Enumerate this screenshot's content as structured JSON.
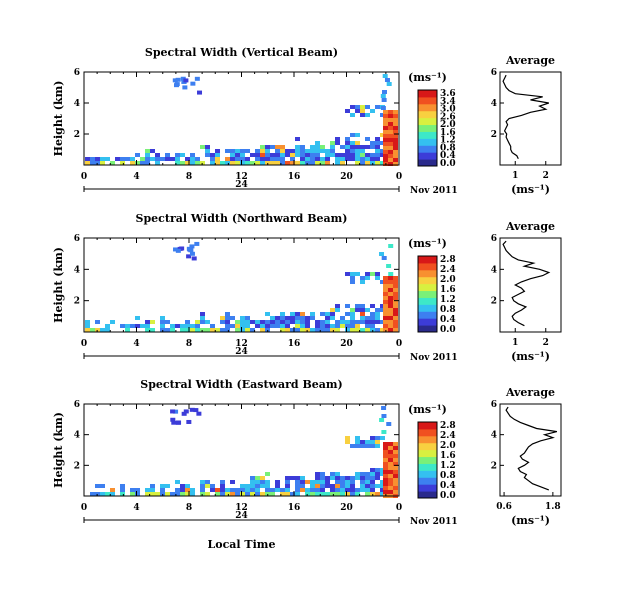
{
  "chart_data": {
    "type": "heatmap",
    "shared": {
      "ylabel": "Height (km)",
      "unit_label": "(ms⁻¹)",
      "x_ticks": [
        "0",
        "4",
        "8",
        "12",
        "16",
        "20",
        "0"
      ],
      "xlim": [
        0,
        24
      ],
      "date_marker": "24",
      "date_label": "Nov 2011",
      "y_ticks": [
        "6",
        "4",
        "2"
      ],
      "ylim": [
        0,
        6
      ],
      "xlabel": "Local Time",
      "colormap": [
        "#2a2a8c",
        "#3c3cd8",
        "#3d7ff0",
        "#34c0f0",
        "#3de8c8",
        "#7af078",
        "#d8f040",
        "#f8d040",
        "#f89030",
        "#f05020",
        "#d81818"
      ]
    },
    "panels": [
      {
        "title": "Spectral Width (Vertical Beam)",
        "colorbar_ticks": [
          "3.6",
          "3.4",
          "3.0",
          "2.6",
          "2.0",
          "1.6",
          "1.2",
          "0.8",
          "0.4",
          "0.0"
        ],
        "average": {
          "title": "Average",
          "xlabel": "(ms⁻¹)",
          "x_ticks": [
            "1",
            "2"
          ],
          "xlim": [
            0.5,
            2.5
          ],
          "y_ticks": [
            "6",
            "4",
            "2"
          ],
          "ylim": [
            0,
            6
          ],
          "height": [
            0.4,
            0.6,
            0.8,
            1.0,
            1.2,
            1.4,
            1.6,
            1.8,
            2.0,
            2.2,
            2.4,
            2.6,
            2.8,
            3.0,
            3.2,
            3.4,
            3.6,
            3.8,
            4.0,
            4.2,
            4.4,
            4.6,
            4.8,
            5.0,
            5.2,
            5.4,
            5.6,
            5.8
          ],
          "value": [
            1.1,
            1.05,
            0.9,
            0.85,
            0.85,
            0.8,
            0.75,
            0.7,
            0.72,
            0.65,
            0.7,
            0.75,
            0.7,
            0.8,
            1.2,
            1.5,
            2.0,
            1.8,
            2.1,
            1.5,
            1.9,
            1.0,
            0.8,
            0.7,
            0.65,
            0.6,
            0.65,
            0.7
          ]
        }
      },
      {
        "title": "Spectral Width (Northward Beam)",
        "colorbar_ticks": [
          "2.8",
          "2.4",
          "2.0",
          "1.6",
          "1.2",
          "0.8",
          "0.4",
          "0.0"
        ],
        "average": {
          "title": "Average",
          "xlabel": "(ms⁻¹)",
          "x_ticks": [
            "1",
            "2"
          ],
          "xlim": [
            0.5,
            2.5
          ],
          "y_ticks": [
            "6",
            "4",
            "2"
          ],
          "ylim": [
            0,
            6
          ],
          "height": [
            0.4,
            0.6,
            0.8,
            1.0,
            1.2,
            1.4,
            1.6,
            1.8,
            2.0,
            2.2,
            2.4,
            2.6,
            2.8,
            3.0,
            3.2,
            3.4,
            3.6,
            3.8,
            4.0,
            4.2,
            4.4,
            4.6,
            4.8,
            5.0,
            5.2,
            5.4,
            5.6,
            5.8
          ],
          "value": [
            1.3,
            1.1,
            0.95,
            0.9,
            1.0,
            1.2,
            1.35,
            1.1,
            0.95,
            0.9,
            1.1,
            1.3,
            1.2,
            1.0,
            1.2,
            1.5,
            1.9,
            2.1,
            1.8,
            1.3,
            1.6,
            1.1,
            0.9,
            0.8,
            0.7,
            0.65,
            0.6,
            0.7
          ]
        }
      },
      {
        "title": "Spectral Width (Eastward Beam)",
        "colorbar_ticks": [
          "2.8",
          "2.4",
          "2.0",
          "1.6",
          "1.2",
          "0.8",
          "0.4",
          "0.0"
        ],
        "average": {
          "title": "Average",
          "xlabel": "(ms⁻¹)",
          "x_ticks": [
            "0.6",
            "1.8"
          ],
          "xlim": [
            0.5,
            2.0
          ],
          "y_ticks": [
            "6",
            "4",
            "2"
          ],
          "ylim": [
            0,
            6
          ],
          "height": [
            0.4,
            0.6,
            0.8,
            1.0,
            1.2,
            1.4,
            1.6,
            1.8,
            2.0,
            2.2,
            2.4,
            2.6,
            2.8,
            3.0,
            3.2,
            3.4,
            3.6,
            3.8,
            4.0,
            4.2,
            4.4,
            4.6,
            4.8,
            5.0,
            5.2,
            5.4,
            5.6,
            5.8
          ],
          "value": [
            1.7,
            1.5,
            1.3,
            1.2,
            1.1,
            1.15,
            1.0,
            0.95,
            1.1,
            1.2,
            1.05,
            1.0,
            1.1,
            1.15,
            1.2,
            1.3,
            1.5,
            1.8,
            1.6,
            1.9,
            1.4,
            1.2,
            1.0,
            0.85,
            0.75,
            0.7,
            0.65,
            0.7
          ]
        }
      }
    ]
  }
}
